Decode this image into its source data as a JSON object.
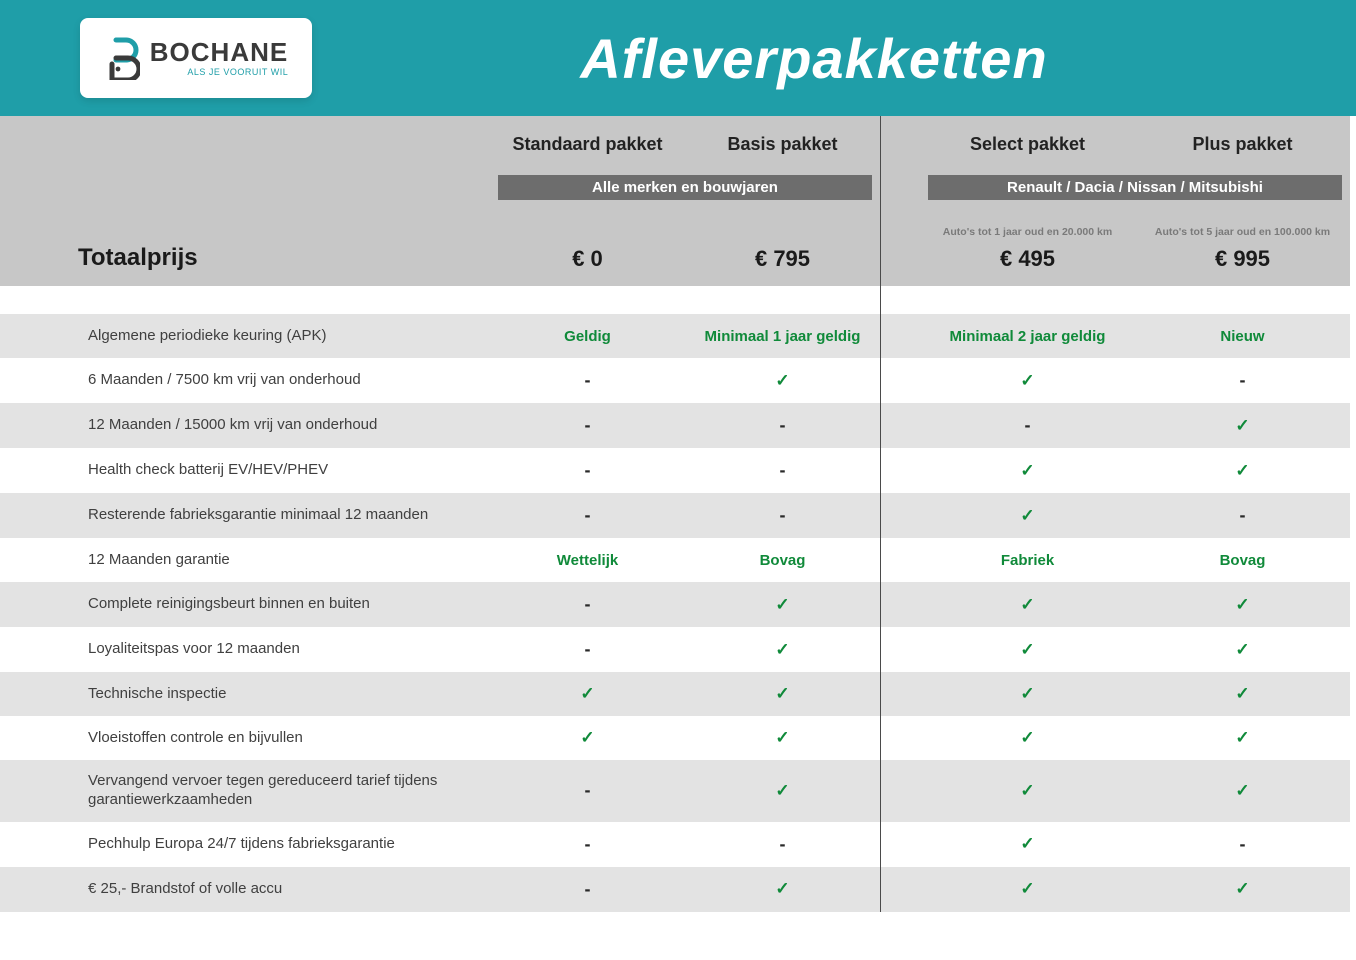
{
  "colors": {
    "hero_bg": "#1f9ea8",
    "header_bg": "#c7c7c7",
    "subbar_bg": "#6d6d6d",
    "row_alt_bg": "#e3e3e3",
    "positive": "#108a3a",
    "text": "#3a3a3a"
  },
  "logo": {
    "name": "BOCHANE",
    "tagline": "ALS JE VOORUIT WIL"
  },
  "hero_title": "Afleverpakketten",
  "total_label": "Totaalprijs",
  "groups": {
    "left": {
      "subtitle": "Alle merken en bouwjaren",
      "packages": [
        {
          "name": "Standaard pakket",
          "fineprint": "",
          "price": "€ 0"
        },
        {
          "name": "Basis pakket",
          "fineprint": "",
          "price": "€ 795"
        }
      ]
    },
    "right": {
      "subtitle": "Renault / Dacia / Nissan / Mitsubishi",
      "packages": [
        {
          "name": "Select pakket",
          "fineprint": "Auto's tot 1 jaar oud en 20.000 km",
          "price": "€ 495"
        },
        {
          "name": "Plus pakket",
          "fineprint": "Auto's tot 5 jaar oud en 100.000 km",
          "price": "€ 995"
        }
      ]
    }
  },
  "features": [
    {
      "label": "Algemene periodieke keuring (APK)",
      "values": [
        "Geldig",
        "Minimaal 1 jaar geldig",
        "Minimaal 2 jaar geldig",
        "Nieuw"
      ],
      "types": [
        "text",
        "text",
        "text",
        "text"
      ]
    },
    {
      "label": "6 Maanden / 7500 km vrij van onderhoud",
      "values": [
        "-",
        "✓",
        "✓",
        "-"
      ],
      "types": [
        "dash",
        "check",
        "check",
        "dash"
      ]
    },
    {
      "label": "12 Maanden / 15000 km vrij van onderhoud",
      "values": [
        "-",
        "-",
        "-",
        "✓"
      ],
      "types": [
        "dash",
        "dash",
        "dash",
        "check"
      ]
    },
    {
      "label": "Health check batterij EV/HEV/PHEV",
      "values": [
        "-",
        "-",
        "✓",
        "✓"
      ],
      "types": [
        "dash",
        "dash",
        "check",
        "check"
      ]
    },
    {
      "label": "Resterende fabrieksgarantie minimaal 12 maanden",
      "values": [
        "-",
        "-",
        "✓",
        "-"
      ],
      "types": [
        "dash",
        "dash",
        "check",
        "dash"
      ]
    },
    {
      "label": "12 Maanden  garantie",
      "values": [
        "Wettelijk",
        "Bovag",
        "Fabriek",
        "Bovag"
      ],
      "types": [
        "text",
        "text",
        "text",
        "text"
      ]
    },
    {
      "label": "Complete reinigingsbeurt binnen en buiten",
      "values": [
        "-",
        "✓",
        "✓",
        "✓"
      ],
      "types": [
        "dash",
        "check",
        "check",
        "check"
      ]
    },
    {
      "label": "Loyaliteitspas voor 12 maanden",
      "values": [
        "-",
        "✓",
        "✓",
        "✓"
      ],
      "types": [
        "dash",
        "check",
        "check",
        "check"
      ]
    },
    {
      "label": "Technische inspectie",
      "values": [
        "✓",
        "✓",
        "✓",
        "✓"
      ],
      "types": [
        "check",
        "check",
        "check",
        "check"
      ]
    },
    {
      "label": "Vloeistoffen controle en bijvullen",
      "values": [
        "✓",
        "✓",
        "✓",
        "✓"
      ],
      "types": [
        "check",
        "check",
        "check",
        "check"
      ]
    },
    {
      "label": "Vervangend vervoer tegen gereduceerd tarief tijdens garantiewerkzaamheden",
      "values": [
        "-",
        "✓",
        "✓",
        "✓"
      ],
      "types": [
        "dash",
        "check",
        "check",
        "check"
      ]
    },
    {
      "label": "Pechhulp Europa 24/7 tijdens fabrieksgarantie",
      "values": [
        "-",
        "-",
        "✓",
        "-"
      ],
      "types": [
        "dash",
        "dash",
        "check",
        "dash"
      ]
    },
    {
      "label": "€ 25,- Brandstof of  volle accu",
      "values": [
        "-",
        "✓",
        "✓",
        "✓"
      ],
      "types": [
        "dash",
        "check",
        "check",
        "check"
      ]
    }
  ]
}
